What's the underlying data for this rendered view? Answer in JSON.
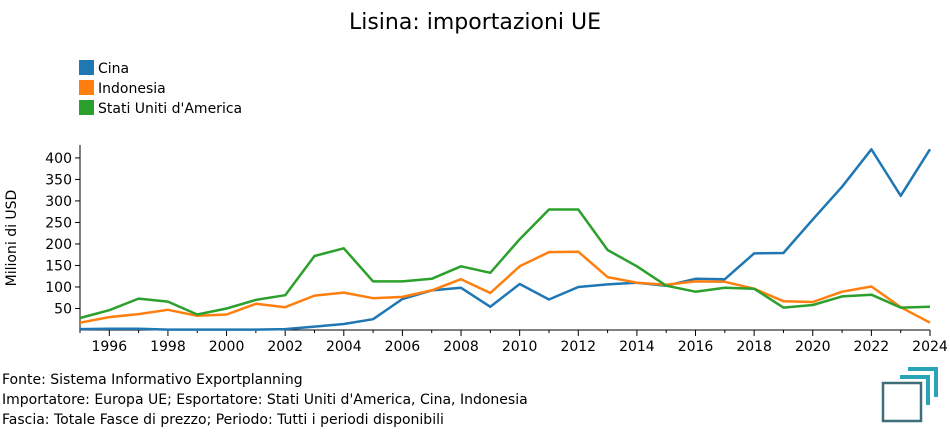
{
  "chart_data": {
    "type": "line",
    "title": "Lisina: importazioni UE",
    "ylabel": "Milioni di USD",
    "xlabel": "",
    "xlim": [
      1995,
      2024
    ],
    "ylim": [
      0,
      430
    ],
    "xticks": [
      1996,
      1998,
      2000,
      2002,
      2004,
      2006,
      2008,
      2010,
      2012,
      2014,
      2016,
      2018,
      2020,
      2022,
      2024
    ],
    "yticks": [
      50,
      100,
      150,
      200,
      250,
      300,
      350,
      400
    ],
    "grid": false,
    "legend_position": "top-left",
    "x": [
      1995,
      1996,
      1997,
      1998,
      1999,
      2000,
      2001,
      2002,
      2003,
      2004,
      2005,
      2006,
      2007,
      2008,
      2009,
      2010,
      2011,
      2012,
      2013,
      2014,
      2015,
      2016,
      2017,
      2018,
      2019,
      2020,
      2021,
      2022,
      2023,
      2024
    ],
    "series": [
      {
        "name": "Cina",
        "color": "#1f77b4",
        "values": [
          2,
          3,
          3,
          1,
          1,
          1,
          1,
          2,
          8,
          14,
          25,
          72,
          92,
          98,
          54,
          107,
          71,
          100,
          106,
          110,
          103,
          119,
          118,
          178,
          179,
          257,
          333,
          420,
          312,
          420
        ]
      },
      {
        "name": "Indonesia",
        "color": "#ff7f0e",
        "values": [
          17,
          30,
          37,
          47,
          33,
          36,
          61,
          53,
          80,
          87,
          74,
          77,
          92,
          118,
          86,
          148,
          181,
          182,
          123,
          110,
          105,
          113,
          112,
          96,
          67,
          65,
          89,
          101,
          53,
          17
        ]
      },
      {
        "name": "Stati Uniti d'America",
        "color": "#2ca02c",
        "values": [
          28,
          46,
          73,
          66,
          36,
          50,
          70,
          81,
          172,
          190,
          113,
          113,
          119,
          148,
          133,
          211,
          280,
          280,
          186,
          148,
          103,
          89,
          98,
          96,
          52,
          58,
          78,
          82,
          52,
          54
        ]
      }
    ]
  },
  "footer": {
    "source": "Fonte: Sistema Informativo Exportplanning",
    "importer": "Importatore: Europa UE; Esportatore: Stati Uniti d'America, Cina, Indonesia",
    "range": "Fascia: Totale Fasce di prezzo; Periodo: Tutti i periodi disponibili"
  },
  "logo_icon": "exportplanning-logo-icon"
}
